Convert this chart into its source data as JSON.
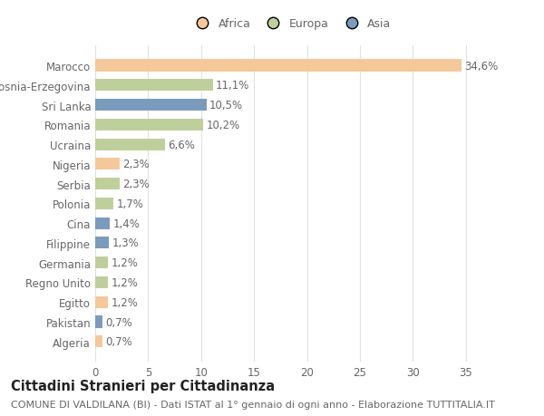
{
  "categories": [
    "Algeria",
    "Pakistan",
    "Egitto",
    "Regno Unito",
    "Germania",
    "Filippine",
    "Cina",
    "Polonia",
    "Serbia",
    "Nigeria",
    "Ucraina",
    "Romania",
    "Sri Lanka",
    "Bosnia-Erzegovina",
    "Marocco"
  ],
  "values": [
    0.7,
    0.7,
    1.2,
    1.2,
    1.2,
    1.3,
    1.4,
    1.7,
    2.3,
    2.3,
    6.6,
    10.2,
    10.5,
    11.1,
    34.6
  ],
  "labels": [
    "0,7%",
    "0,7%",
    "1,2%",
    "1,2%",
    "1,2%",
    "1,3%",
    "1,4%",
    "1,7%",
    "2,3%",
    "2,3%",
    "6,6%",
    "10,2%",
    "10,5%",
    "11,1%",
    "34,6%"
  ],
  "continents": [
    "Africa",
    "Asia",
    "Africa",
    "Europa",
    "Europa",
    "Asia",
    "Asia",
    "Europa",
    "Europa",
    "Africa",
    "Europa",
    "Europa",
    "Asia",
    "Europa",
    "Africa"
  ],
  "colors": {
    "Africa": "#F5C89A",
    "Europa": "#BFCF9B",
    "Asia": "#7B9BBD"
  },
  "legend_labels": [
    "Africa",
    "Europa",
    "Asia"
  ],
  "legend_colors": [
    "#F5C89A",
    "#BFCF9B",
    "#7B9BBD"
  ],
  "title": "Cittadini Stranieri per Cittadinanza",
  "subtitle": "COMUNE DI VALDILANA (BI) - Dati ISTAT al 1° gennaio di ogni anno - Elaborazione TUTTITALIA.IT",
  "xlim": [
    0,
    37
  ],
  "xticks": [
    0,
    5,
    10,
    15,
    20,
    25,
    30,
    35
  ],
  "bg_color": "#FFFFFF",
  "grid_color": "#E0E0E0",
  "bar_height": 0.6,
  "label_fontsize": 8.5,
  "tick_fontsize": 8.5,
  "title_fontsize": 10.5,
  "subtitle_fontsize": 8.0
}
